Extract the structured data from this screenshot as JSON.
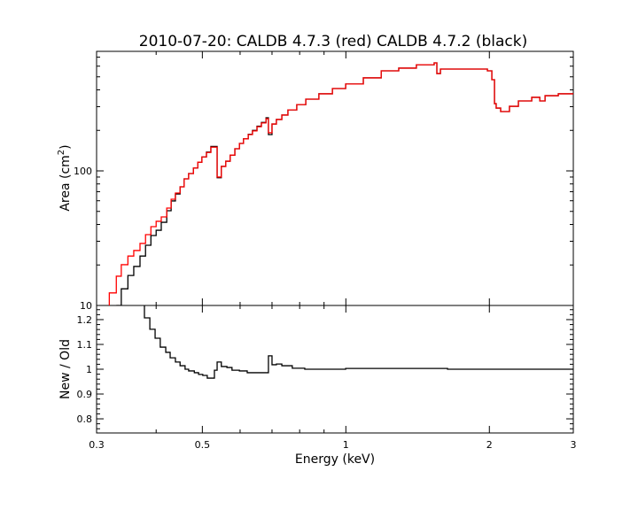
{
  "chart_data": [
    {
      "type": "line",
      "panel": "top",
      "title": "2010-07-20: CALDB 4.7.3 (red) CALDB 4.7.2 (black)",
      "ylabel": "Area (cm",
      "ylabel_sup": "2",
      "ylabel_close": ")",
      "xlabel": "",
      "x_scale": "log",
      "y_scale": "log",
      "xlim": [
        0.3,
        3
      ],
      "ylim": [
        10,
        773
      ],
      "y_tick_labels": [
        "10",
        "100"
      ],
      "step": "histogram",
      "colors": {
        "new": "#ff0000",
        "old": "#000000"
      },
      "series": [
        {
          "color": "#000000",
          "points": [
            [
              0.33,
              10
            ],
            [
              0.338,
              13.3
            ],
            [
              0.349,
              16.7
            ],
            [
              0.359,
              19.5
            ],
            [
              0.37,
              23.3
            ],
            [
              0.38,
              28.0
            ],
            [
              0.39,
              33.1
            ],
            [
              0.4,
              36.2
            ],
            [
              0.41,
              41.5
            ],
            [
              0.421,
              50.6
            ],
            [
              0.43,
              59.8
            ],
            [
              0.439,
              67.4
            ],
            [
              0.449,
              76.1
            ],
            [
              0.458,
              87.3
            ],
            [
              0.468,
              95.6
            ],
            [
              0.479,
              105
            ],
            [
              0.489,
              116
            ],
            [
              0.499,
              127
            ],
            [
              0.51,
              138
            ],
            [
              0.521,
              152
            ],
            [
              0.537,
              89
            ],
            [
              0.548,
              108
            ],
            [
              0.56,
              118
            ],
            [
              0.572,
              131
            ],
            [
              0.585,
              146
            ],
            [
              0.598,
              160
            ],
            [
              0.61,
              173
            ],
            [
              0.624,
              187
            ],
            [
              0.637,
              200
            ],
            [
              0.651,
              215
            ],
            [
              0.665,
              229
            ],
            [
              0.68,
              248
            ],
            [
              0.688,
              186
            ],
            [
              0.7,
              223
            ],
            [
              0.715,
              241
            ],
            [
              0.734,
              260
            ],
            [
              0.756,
              284
            ],
            [
              0.789,
              311
            ],
            [
              0.824,
              341
            ],
            [
              0.878,
              374
            ],
            [
              0.937,
              409
            ],
            [
              0.999,
              442
            ],
            [
              1.088,
              491
            ],
            [
              1.186,
              554
            ],
            [
              1.291,
              580
            ],
            [
              1.406,
              615
            ],
            [
              1.532,
              635
            ],
            [
              1.552,
              529
            ],
            [
              1.579,
              571
            ],
            [
              1.981,
              554
            ],
            [
              2.024,
              476
            ],
            [
              2.05,
              316
            ],
            [
              2.067,
              293
            ],
            [
              2.112,
              276
            ],
            [
              2.158,
              276
            ],
            [
              2.204,
              302
            ],
            [
              2.301,
              331
            ],
            [
              2.454,
              352
            ],
            [
              2.551,
              331
            ],
            [
              2.617,
              362
            ],
            [
              2.79,
              374
            ],
            [
              3.0,
              374
            ]
          ]
        },
        {
          "color": "#ff0000",
          "points": [
            [
              0.319,
              12.4
            ],
            [
              0.33,
              16.5
            ],
            [
              0.338,
              20.1
            ],
            [
              0.349,
              23.3
            ],
            [
              0.359,
              25.6
            ],
            [
              0.37,
              28.9
            ],
            [
              0.38,
              33.6
            ],
            [
              0.39,
              38.5
            ],
            [
              0.4,
              42.2
            ],
            [
              0.41,
              45.5
            ],
            [
              0.421,
              52.9
            ],
            [
              0.43,
              61.6
            ],
            [
              0.439,
              68.5
            ],
            [
              0.449,
              76.1
            ],
            [
              0.458,
              87.3
            ],
            [
              0.468,
              95.6
            ],
            [
              0.479,
              105
            ],
            [
              0.489,
              116
            ],
            [
              0.499,
              127
            ],
            [
              0.51,
              137
            ],
            [
              0.521,
              150
            ],
            [
              0.537,
              90
            ],
            [
              0.548,
              108
            ],
            [
              0.56,
              118
            ],
            [
              0.572,
              131
            ],
            [
              0.585,
              146
            ],
            [
              0.598,
              160
            ],
            [
              0.61,
              173
            ],
            [
              0.624,
              186
            ],
            [
              0.637,
              198
            ],
            [
              0.651,
              213
            ],
            [
              0.665,
              227
            ],
            [
              0.68,
              244
            ],
            [
              0.688,
              192
            ],
            [
              0.7,
              223
            ],
            [
              0.715,
              241
            ],
            [
              0.734,
              260
            ],
            [
              0.756,
              284
            ],
            [
              0.789,
              311
            ],
            [
              0.824,
              341
            ],
            [
              0.878,
              374
            ],
            [
              0.937,
              409
            ],
            [
              0.999,
              442
            ],
            [
              1.088,
              491
            ],
            [
              1.186,
              554
            ],
            [
              1.291,
              580
            ],
            [
              1.406,
              615
            ],
            [
              1.532,
              635
            ],
            [
              1.552,
              529
            ],
            [
              1.579,
              571
            ],
            [
              1.981,
              554
            ],
            [
              2.024,
              476
            ],
            [
              2.05,
              316
            ],
            [
              2.067,
              293
            ],
            [
              2.112,
              276
            ],
            [
              2.158,
              276
            ],
            [
              2.204,
              302
            ],
            [
              2.301,
              331
            ],
            [
              2.454,
              352
            ],
            [
              2.551,
              331
            ],
            [
              2.617,
              362
            ],
            [
              2.79,
              374
            ],
            [
              3.0,
              374
            ]
          ]
        }
      ]
    },
    {
      "type": "line",
      "panel": "bottom",
      "xlabel": "Energy (keV)",
      "ylabel": "New / Old",
      "x_scale": "log",
      "y_scale": "linear",
      "xlim": [
        0.3,
        3
      ],
      "ylim": [
        0.743,
        1.257
      ],
      "x_tick_labels": [
        "0.3",
        "0.5",
        "1",
        "2",
        "3"
      ],
      "y_tick_labels": [
        "0.8",
        "0.9",
        "1",
        "1.1",
        "1.2"
      ],
      "series": [
        {
          "color": "#000000",
          "points": [
            [
              0.378,
              1.207
            ],
            [
              0.388,
              1.161
            ],
            [
              0.398,
              1.125
            ],
            [
              0.408,
              1.089
            ],
            [
              0.419,
              1.068
            ],
            [
              0.428,
              1.046
            ],
            [
              0.439,
              1.029
            ],
            [
              0.449,
              1.014
            ],
            [
              0.46,
              1.0
            ],
            [
              0.468,
              0.993
            ],
            [
              0.481,
              0.986
            ],
            [
              0.491,
              0.979
            ],
            [
              0.501,
              0.975
            ],
            [
              0.512,
              0.964
            ],
            [
              0.53,
              0.996
            ],
            [
              0.537,
              1.029
            ],
            [
              0.548,
              1.011
            ],
            [
              0.563,
              1.007
            ],
            [
              0.577,
              0.996
            ],
            [
              0.598,
              0.993
            ],
            [
              0.621,
              0.986
            ],
            [
              0.688,
              1.054
            ],
            [
              0.7,
              1.018
            ],
            [
              0.715,
              1.021
            ],
            [
              0.734,
              1.014
            ],
            [
              0.772,
              1.004
            ],
            [
              0.82,
              1.0
            ],
            [
              0.999,
              1.003
            ],
            [
              1.634,
              1.0
            ],
            [
              3.0,
              1.0
            ]
          ]
        }
      ]
    }
  ]
}
